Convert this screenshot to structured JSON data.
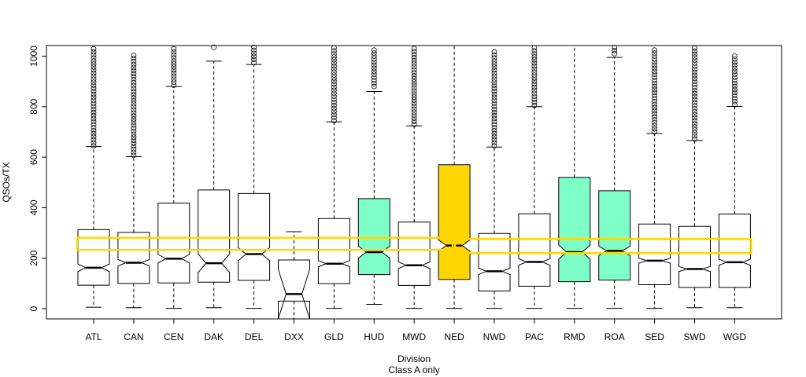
{
  "chart_data": {
    "type": "boxplot",
    "notched": true,
    "title": "",
    "xlabel": "Division",
    "subtitle": "Class A only",
    "ylabel": "QSOs/TX",
    "ylim": [
      -40,
      1040
    ],
    "yticks": [
      0,
      200,
      400,
      600,
      800,
      1000
    ],
    "grid": false,
    "legend": "none",
    "colors": {
      "default_fill": "#ffffff",
      "highlight_green": "#7fffc8",
      "highlight_gold": "#ffd700",
      "band_outline": "#ffd700",
      "stroke": "#000000"
    },
    "categories": [
      "ATL",
      "CAN",
      "CEN",
      "DAK",
      "DEL",
      "DXX",
      "GLD",
      "HUD",
      "MWD",
      "NED",
      "NWD",
      "PAC",
      "RMD",
      "ROA",
      "SED",
      "SWD",
      "WGD"
    ],
    "boxes": [
      {
        "name": "ATL",
        "whisker_low": 6,
        "q1": 93,
        "median": 162,
        "q3": 313,
        "whisker_high": 642,
        "notch": [
          147,
          177
        ],
        "fill": "default",
        "outliers_range": [
          645,
          1040
        ]
      },
      {
        "name": "CAN",
        "whisker_low": 4,
        "q1": 100,
        "median": 182,
        "q3": 302,
        "whisker_high": 602,
        "notch": [
          169,
          195
        ],
        "fill": "default",
        "outliers_range": [
          607,
          1012
        ]
      },
      {
        "name": "CEN",
        "whisker_low": 1,
        "q1": 102,
        "median": 198,
        "q3": 418,
        "whisker_high": 880,
        "notch": [
          181,
          215
        ],
        "fill": "default",
        "outliers_range": [
          885,
          1040
        ]
      },
      {
        "name": "DAK",
        "whisker_low": 4,
        "q1": 105,
        "median": 180,
        "q3": 470,
        "whisker_high": 980,
        "notch": [
          143,
          217
        ],
        "fill": "default",
        "outliers_range": [
          1035,
          1040
        ]
      },
      {
        "name": "DEL",
        "whisker_low": 1,
        "q1": 112,
        "median": 216,
        "q3": 456,
        "whisker_high": 967,
        "notch": [
          190,
          242
        ],
        "fill": "default",
        "outliers_range": [
          975,
          1040
        ]
      },
      {
        "name": "DXX",
        "whisker_low": -40,
        "q1": 30,
        "median": 58,
        "q3": 193,
        "whisker_high": 305,
        "notch": [
          -40,
          156
        ],
        "fill": "default",
        "outliers_range": null
      },
      {
        "name": "GLD",
        "whisker_low": 1,
        "q1": 99,
        "median": 178,
        "q3": 357,
        "whisker_high": 740,
        "notch": [
          166,
          190
        ],
        "fill": "default",
        "outliers_range": [
          745,
          1040
        ]
      },
      {
        "name": "HUD",
        "whisker_low": 17,
        "q1": 135,
        "median": 224,
        "q3": 436,
        "whisker_high": 860,
        "notch": [
          200,
          248
        ],
        "fill": "green",
        "outliers_range": [
          880,
          1040
        ]
      },
      {
        "name": "MWD",
        "whisker_low": 1,
        "q1": 92,
        "median": 172,
        "q3": 343,
        "whisker_high": 724,
        "notch": [
          159,
          185
        ],
        "fill": "default",
        "outliers_range": [
          730,
          1030
        ]
      },
      {
        "name": "NED",
        "whisker_low": 1,
        "q1": 116,
        "median": 250,
        "q3": 570,
        "whisker_high": 1040,
        "notch": [
          228,
          272
        ],
        "fill": "gold",
        "outliers_range": null
      },
      {
        "name": "NWD",
        "whisker_low": 1,
        "q1": 70,
        "median": 148,
        "q3": 298,
        "whisker_high": 640,
        "notch": [
          135,
          161
        ],
        "fill": "default",
        "outliers_range": [
          645,
          1025
        ]
      },
      {
        "name": "PAC",
        "whisker_low": 1,
        "q1": 89,
        "median": 185,
        "q3": 376,
        "whisker_high": 800,
        "notch": [
          172,
          198
        ],
        "fill": "default",
        "outliers_range": [
          805,
          1040
        ]
      },
      {
        "name": "RMD",
        "whisker_low": 1,
        "q1": 107,
        "median": 224,
        "q3": 520,
        "whisker_high": 1040,
        "notch": [
          196,
          252
        ],
        "fill": "green",
        "outliers_range": null
      },
      {
        "name": "ROA",
        "whisker_low": 1,
        "q1": 113,
        "median": 229,
        "q3": 467,
        "whisker_high": 995,
        "notch": [
          210,
          248
        ],
        "fill": "green",
        "outliers_range": [
          1010,
          1040
        ]
      },
      {
        "name": "SED",
        "whisker_low": 1,
        "q1": 95,
        "median": 190,
        "q3": 335,
        "whisker_high": 694,
        "notch": [
          180,
          200
        ],
        "fill": "default",
        "outliers_range": [
          700,
          1040
        ]
      },
      {
        "name": "SWD",
        "whisker_low": 4,
        "q1": 84,
        "median": 157,
        "q3": 326,
        "whisker_high": 666,
        "notch": [
          147,
          167
        ],
        "fill": "default",
        "outliers_range": [
          672,
          1040
        ]
      },
      {
        "name": "WGD",
        "whisker_low": 4,
        "q1": 84,
        "median": 184,
        "q3": 375,
        "whisker_high": 801,
        "notch": [
          172,
          196
        ],
        "fill": "default",
        "outliers_range": [
          808,
          1000
        ]
      }
    ],
    "annotations": [
      {
        "type": "band",
        "label": "median-band-left",
        "y_range": [
          233,
          281
        ],
        "x_from": "ATL",
        "x_to": "NED"
      },
      {
        "type": "band",
        "label": "median-band-right",
        "y_range": [
          220,
          276
        ],
        "x_from": "NED",
        "x_to": "WGD"
      }
    ]
  }
}
